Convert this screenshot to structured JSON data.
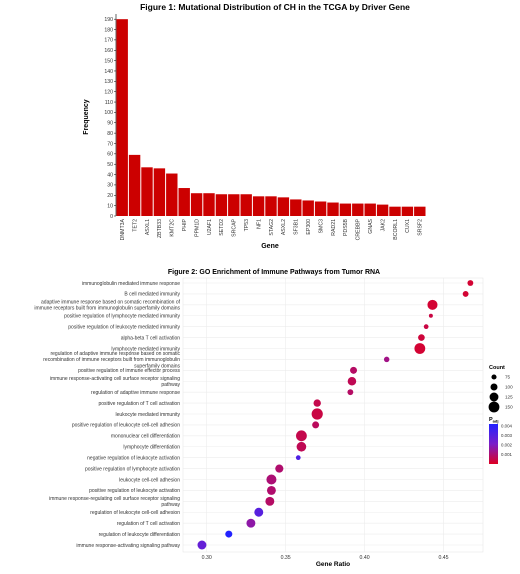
{
  "chart_data": [
    {
      "type": "bar",
      "title": "Figure 1: Mutational Distribution of CH in the TCGA by Driver Gene",
      "xlabel": "Gene",
      "ylabel": "Frequency",
      "ylim": [
        0,
        195
      ],
      "yticks": [
        0,
        10,
        20,
        30,
        40,
        50,
        60,
        70,
        80,
        90,
        100,
        110,
        120,
        130,
        140,
        150,
        160,
        170,
        180,
        190
      ],
      "bar_color": "#cc0000",
      "categories": [
        "DNMT3A",
        "TET2",
        "ASXL1",
        "ZBTB33",
        "KMT2C",
        "PHIP",
        "PPM1D",
        "U2AF1",
        "SETD2",
        "SRCAP",
        "TP53",
        "NF1",
        "STAG2",
        "ASXL2",
        "SF3B1",
        "EP300",
        "SMC3",
        "RAD21",
        "PDS5B",
        "CREBBP",
        "GNAS",
        "JAK2",
        "BCORL1",
        "CUX1",
        "SRSF2"
      ],
      "values": [
        190,
        59,
        47,
        46,
        41,
        27,
        22,
        22,
        21,
        21,
        21,
        19,
        19,
        18,
        16,
        15,
        14,
        13,
        12,
        12,
        12,
        11,
        9,
        9,
        9
      ]
    },
    {
      "type": "scatter",
      "title": "Figure 2: GO Enrichment of Immune Pathways from Tumor RNA",
      "xlabel": "Gene Ratio",
      "ylabel": "",
      "xlim": [
        0.285,
        0.475
      ],
      "xticks": [
        0.3,
        0.35,
        0.4,
        0.45
      ],
      "xtick_labels": [
        "0.30",
        "0.35",
        "0.40",
        "0.45"
      ],
      "grid": true,
      "legend_position": "right",
      "size_legend": {
        "title": "Count",
        "values": [
          75,
          100,
          125,
          150
        ],
        "labels": [
          "75",
          "100",
          "125",
          "150"
        ]
      },
      "color_legend": {
        "title": "P",
        "title_sub": "adj",
        "values": [
          0.004,
          0.003,
          0.002,
          0.001
        ],
        "labels": [
          "0.004",
          "0.003",
          "0.002",
          "0.001"
        ],
        "high_color": "#2222ff",
        "low_color": "#dd0022"
      },
      "terms": [
        {
          "label": "immunoglobulin mediated immune response",
          "ratio": 0.467,
          "count": 85,
          "padj": 0.0002
        },
        {
          "label": "B cell mediated immunity",
          "ratio": 0.464,
          "count": 85,
          "padj": 0.0002
        },
        {
          "label": "adaptive immune response based on somatic recombination of immune receptors built from immunoglobulin superfamily domains",
          "ratio": 0.443,
          "count": 140,
          "padj": 0.0002
        },
        {
          "label": "positive regulation of lymphocyte mediated immunity",
          "ratio": 0.442,
          "count": 60,
          "padj": 0.0004
        },
        {
          "label": "positive regulation of leukocyte mediated immunity",
          "ratio": 0.439,
          "count": 70,
          "padj": 0.0004
        },
        {
          "label": "alpha-beta T cell activation",
          "ratio": 0.436,
          "count": 95,
          "padj": 0.0003
        },
        {
          "label": "lymphocyte mediated immunity",
          "ratio": 0.435,
          "count": 150,
          "padj": 0.0002
        },
        {
          "label": "regulation of adaptive immune response based on somatic recombination of immune receptors built from immunoglobulin superfamily domains",
          "ratio": 0.414,
          "count": 80,
          "padj": 0.0012
        },
        {
          "label": "positive regulation of immune effector process",
          "ratio": 0.393,
          "count": 100,
          "padj": 0.0008
        },
        {
          "label": "immune response-activating cell surface receptor signaling pathway",
          "ratio": 0.392,
          "count": 120,
          "padj": 0.0006
        },
        {
          "label": "regulation of adaptive immune response",
          "ratio": 0.391,
          "count": 85,
          "padj": 0.0008
        },
        {
          "label": "positive regulation of T cell activation",
          "ratio": 0.37,
          "count": 105,
          "padj": 0.0005
        },
        {
          "label": "leukocyte mediated immunity",
          "ratio": 0.37,
          "count": 155,
          "padj": 0.0004
        },
        {
          "label": "positive regulation of leukocyte cell-cell adhesion",
          "ratio": 0.369,
          "count": 100,
          "padj": 0.0007
        },
        {
          "label": "mononuclear cell differentiation",
          "ratio": 0.36,
          "count": 150,
          "padj": 0.0005
        },
        {
          "label": "lymphocyte differentiation",
          "ratio": 0.36,
          "count": 135,
          "padj": 0.0006
        },
        {
          "label": "negative regulation of leukocyte activation",
          "ratio": 0.358,
          "count": 70,
          "padj": 0.003
        },
        {
          "label": "positive regulation of lymphocyte activation",
          "ratio": 0.346,
          "count": 115,
          "padj": 0.0009
        },
        {
          "label": "leukocyte cell-cell adhesion",
          "ratio": 0.341,
          "count": 140,
          "padj": 0.001
        },
        {
          "label": "positive regulation of leukocyte activation",
          "ratio": 0.341,
          "count": 125,
          "padj": 0.0009
        },
        {
          "label": "immune response-regulating cell surface receptor signaling pathway",
          "ratio": 0.34,
          "count": 125,
          "padj": 0.0008
        },
        {
          "label": "regulation of leukocyte cell-cell adhesion",
          "ratio": 0.333,
          "count": 125,
          "padj": 0.0028
        },
        {
          "label": "regulation of T cell activation",
          "ratio": 0.328,
          "count": 125,
          "padj": 0.0016
        },
        {
          "label": "regulation of leukocyte differentiation",
          "ratio": 0.314,
          "count": 100,
          "padj": 0.0044
        },
        {
          "label": "immune response-activating signaling pathway",
          "ratio": 0.297,
          "count": 125,
          "padj": 0.0025
        }
      ]
    }
  ]
}
